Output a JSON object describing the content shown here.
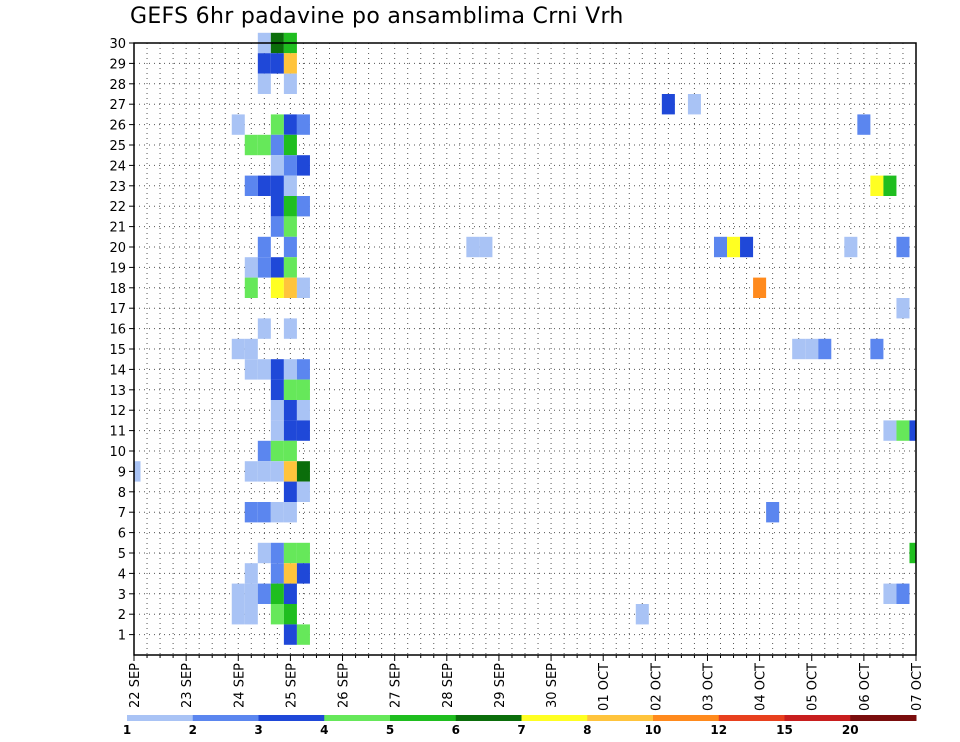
{
  "chart_data": {
    "type": "heatmap",
    "title": "GEFS 6hr padavine po ansamblima Crni Vrh",
    "xlabel": "",
    "ylabel": "",
    "x_tick_labels": [
      "22 SEP",
      "23 SEP",
      "24 SEP",
      "25 SEP",
      "26 SEP",
      "27 SEP",
      "28 SEP",
      "29 SEP",
      "30 SEP",
      "01 OCT",
      "02 OCT",
      "03 OCT",
      "04 OCT",
      "05 OCT",
      "06 OCT",
      "07 OCT"
    ],
    "x_unit": "6h steps from 22 SEP 00Z",
    "xlim": [
      0,
      60
    ],
    "y_tick_labels": [
      "1",
      "2",
      "3",
      "4",
      "5",
      "6",
      "7",
      "8",
      "9",
      "10",
      "11",
      "12",
      "13",
      "14",
      "15",
      "16",
      "17",
      "18",
      "19",
      "20",
      "21",
      "22",
      "23",
      "24",
      "25",
      "26",
      "27",
      "28",
      "29",
      "30"
    ],
    "ylim": [
      0,
      30
    ],
    "grid": true,
    "colorbar": {
      "labels": [
        "1",
        "2",
        "3",
        "4",
        "5",
        "6",
        "7",
        "8",
        "10",
        "12",
        "15",
        "20"
      ],
      "colors": [
        "#a9c3f5",
        "#5b86ef",
        "#1f48d8",
        "#66e85a",
        "#1fbe1f",
        "#0b6e0b",
        "#ffff22",
        "#ffc43c",
        "#ff8a1d",
        "#e8401e",
        "#c81e1e",
        "#7a0d0d"
      ]
    },
    "cells": [
      {
        "member": 30,
        "step": 10,
        "level": 1
      },
      {
        "member": 30,
        "step": 11,
        "level": 6
      },
      {
        "member": 30,
        "step": 12,
        "level": 5
      },
      {
        "member": 29,
        "step": 10,
        "level": 3
      },
      {
        "member": 29,
        "step": 11,
        "level": 3
      },
      {
        "member": 29,
        "step": 12,
        "level": 8
      },
      {
        "member": 28,
        "step": 10,
        "level": 1
      },
      {
        "member": 28,
        "step": 12,
        "level": 1
      },
      {
        "member": 27,
        "step": 41,
        "level": 3
      },
      {
        "member": 27,
        "step": 43,
        "level": 1
      },
      {
        "member": 26,
        "step": 8,
        "level": 1
      },
      {
        "member": 26,
        "step": 11,
        "level": 4
      },
      {
        "member": 26,
        "step": 12,
        "level": 3
      },
      {
        "member": 26,
        "step": 13,
        "level": 2
      },
      {
        "member": 26,
        "step": 56,
        "level": 2
      },
      {
        "member": 25,
        "step": 9,
        "level": 4
      },
      {
        "member": 25,
        "step": 10,
        "level": 4
      },
      {
        "member": 25,
        "step": 11,
        "level": 2
      },
      {
        "member": 25,
        "step": 12,
        "level": 5
      },
      {
        "member": 24,
        "step": 11,
        "level": 1
      },
      {
        "member": 24,
        "step": 12,
        "level": 2
      },
      {
        "member": 24,
        "step": 13,
        "level": 3
      },
      {
        "member": 23,
        "step": 9,
        "level": 2
      },
      {
        "member": 23,
        "step": 10,
        "level": 3
      },
      {
        "member": 23,
        "step": 11,
        "level": 3
      },
      {
        "member": 23,
        "step": 12,
        "level": 1
      },
      {
        "member": 23,
        "step": 57,
        "level": 7
      },
      {
        "member": 23,
        "step": 58,
        "level": 5
      },
      {
        "member": 22,
        "step": 11,
        "level": 3
      },
      {
        "member": 22,
        "step": 12,
        "level": 5
      },
      {
        "member": 22,
        "step": 13,
        "level": 2
      },
      {
        "member": 21,
        "step": 11,
        "level": 2
      },
      {
        "member": 21,
        "step": 12,
        "level": 4
      },
      {
        "member": 20,
        "step": 10,
        "level": 2
      },
      {
        "member": 20,
        "step": 12,
        "level": 2
      },
      {
        "member": 20,
        "step": 26,
        "level": 1
      },
      {
        "member": 20,
        "step": 27,
        "level": 1
      },
      {
        "member": 20,
        "step": 45,
        "level": 2
      },
      {
        "member": 20,
        "step": 46,
        "level": 7
      },
      {
        "member": 20,
        "step": 47,
        "level": 3
      },
      {
        "member": 20,
        "step": 55,
        "level": 1
      },
      {
        "member": 20,
        "step": 59,
        "level": 2
      },
      {
        "member": 19,
        "step": 9,
        "level": 1
      },
      {
        "member": 19,
        "step": 10,
        "level": 2
      },
      {
        "member": 19,
        "step": 11,
        "level": 3
      },
      {
        "member": 19,
        "step": 12,
        "level": 4
      },
      {
        "member": 18,
        "step": 9,
        "level": 4
      },
      {
        "member": 18,
        "step": 11,
        "level": 7
      },
      {
        "member": 18,
        "step": 12,
        "level": 8
      },
      {
        "member": 18,
        "step": 13,
        "level": 1
      },
      {
        "member": 18,
        "step": 48,
        "level": 9
      },
      {
        "member": 17,
        "step": 59,
        "level": 1
      },
      {
        "member": 16,
        "step": 10,
        "level": 1
      },
      {
        "member": 16,
        "step": 12,
        "level": 1
      },
      {
        "member": 15,
        "step": 8,
        "level": 1
      },
      {
        "member": 15,
        "step": 9,
        "level": 1
      },
      {
        "member": 15,
        "step": 51,
        "level": 1
      },
      {
        "member": 15,
        "step": 52,
        "level": 1
      },
      {
        "member": 15,
        "step": 53,
        "level": 2
      },
      {
        "member": 15,
        "step": 57,
        "level": 2
      },
      {
        "member": 14,
        "step": 9,
        "level": 1
      },
      {
        "member": 14,
        "step": 10,
        "level": 1
      },
      {
        "member": 14,
        "step": 11,
        "level": 3
      },
      {
        "member": 14,
        "step": 12,
        "level": 1
      },
      {
        "member": 14,
        "step": 13,
        "level": 2
      },
      {
        "member": 13,
        "step": 11,
        "level": 3
      },
      {
        "member": 13,
        "step": 12,
        "level": 4
      },
      {
        "member": 13,
        "step": 13,
        "level": 4
      },
      {
        "member": 12,
        "step": 11,
        "level": 1
      },
      {
        "member": 12,
        "step": 12,
        "level": 3
      },
      {
        "member": 12,
        "step": 13,
        "level": 1
      },
      {
        "member": 11,
        "step": 11,
        "level": 1
      },
      {
        "member": 11,
        "step": 12,
        "level": 3
      },
      {
        "member": 11,
        "step": 13,
        "level": 3
      },
      {
        "member": 11,
        "step": 58,
        "level": 1
      },
      {
        "member": 11,
        "step": 59,
        "level": 4
      },
      {
        "member": 11,
        "step": 60,
        "level": 3
      },
      {
        "member": 10,
        "step": 10,
        "level": 2
      },
      {
        "member": 10,
        "step": 11,
        "level": 4
      },
      {
        "member": 10,
        "step": 12,
        "level": 4
      },
      {
        "member": 9,
        "step": 0,
        "level": 1
      },
      {
        "member": 9,
        "step": 9,
        "level": 1
      },
      {
        "member": 9,
        "step": 10,
        "level": 1
      },
      {
        "member": 9,
        "step": 11,
        "level": 1
      },
      {
        "member": 9,
        "step": 12,
        "level": 8
      },
      {
        "member": 9,
        "step": 13,
        "level": 6
      },
      {
        "member": 8,
        "step": 12,
        "level": 3
      },
      {
        "member": 8,
        "step": 13,
        "level": 1
      },
      {
        "member": 7,
        "step": 9,
        "level": 2
      },
      {
        "member": 7,
        "step": 10,
        "level": 2
      },
      {
        "member": 7,
        "step": 11,
        "level": 1
      },
      {
        "member": 7,
        "step": 12,
        "level": 1
      },
      {
        "member": 7,
        "step": 49,
        "level": 2
      },
      {
        "member": 5,
        "step": 10,
        "level": 1
      },
      {
        "member": 5,
        "step": 11,
        "level": 2
      },
      {
        "member": 5,
        "step": 12,
        "level": 4
      },
      {
        "member": 5,
        "step": 13,
        "level": 4
      },
      {
        "member": 5,
        "step": 60,
        "level": 5
      },
      {
        "member": 4,
        "step": 9,
        "level": 1
      },
      {
        "member": 4,
        "step": 11,
        "level": 2
      },
      {
        "member": 4,
        "step": 12,
        "level": 8
      },
      {
        "member": 4,
        "step": 13,
        "level": 3
      },
      {
        "member": 3,
        "step": 8,
        "level": 1
      },
      {
        "member": 3,
        "step": 9,
        "level": 1
      },
      {
        "member": 3,
        "step": 10,
        "level": 2
      },
      {
        "member": 3,
        "step": 11,
        "level": 5
      },
      {
        "member": 3,
        "step": 12,
        "level": 3
      },
      {
        "member": 3,
        "step": 58,
        "level": 1
      },
      {
        "member": 3,
        "step": 59,
        "level": 2
      },
      {
        "member": 2,
        "step": 8,
        "level": 1
      },
      {
        "member": 2,
        "step": 9,
        "level": 1
      },
      {
        "member": 2,
        "step": 11,
        "level": 4
      },
      {
        "member": 2,
        "step": 12,
        "level": 5
      },
      {
        "member": 2,
        "step": 39,
        "level": 1
      },
      {
        "member": 1,
        "step": 12,
        "level": 3
      },
      {
        "member": 1,
        "step": 13,
        "level": 4
      }
    ]
  }
}
